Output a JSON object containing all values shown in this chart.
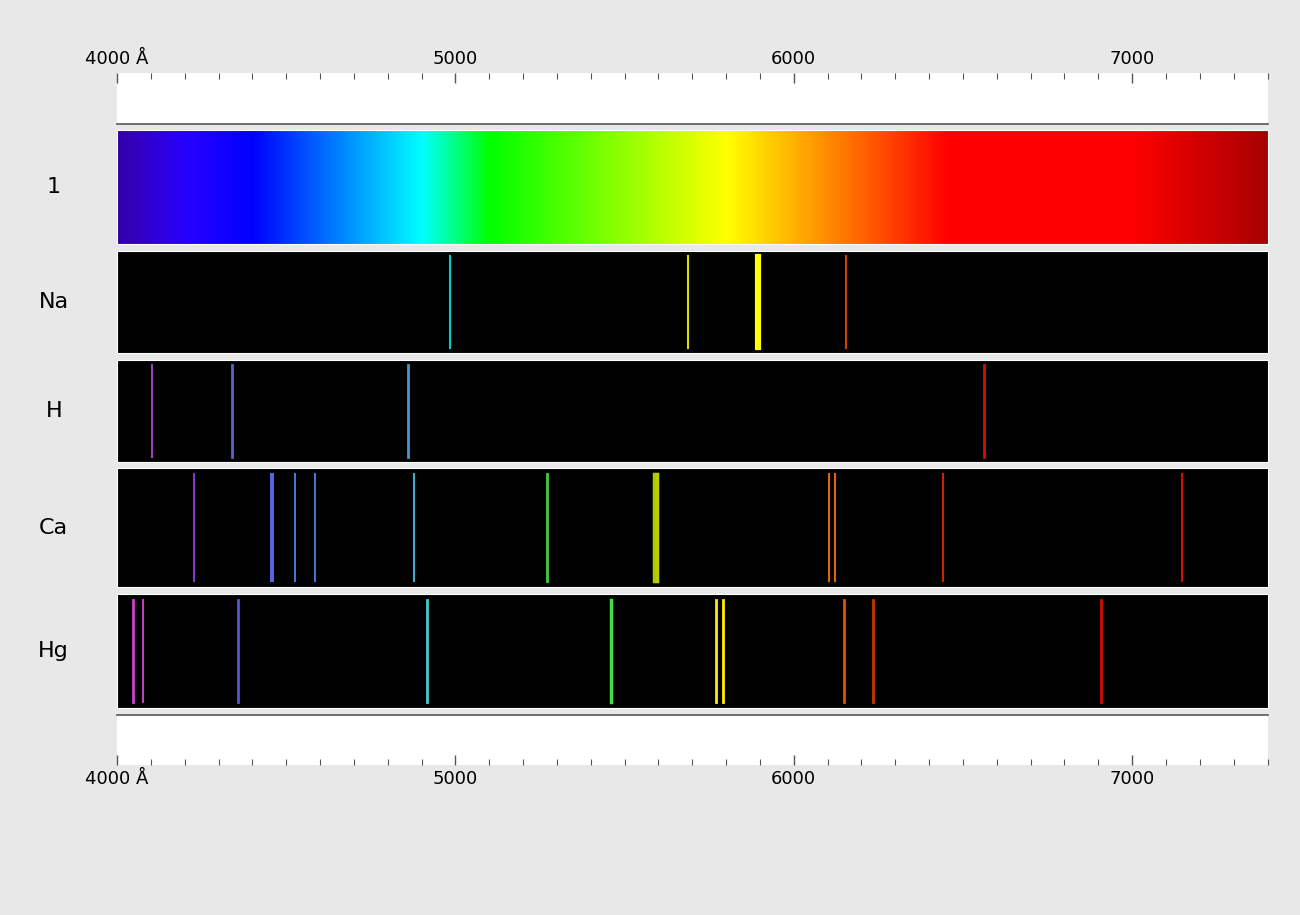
{
  "wavelength_min": 4000,
  "wavelength_max": 7400,
  "spectrum_rows": [
    "1",
    "Na",
    "H",
    "Ca",
    "Hg"
  ],
  "figure_bg": "#e8e8e8",
  "tick_labels": [
    "4000 Å",
    "5000",
    "6000",
    "7000"
  ],
  "major_ticks": [
    4000,
    5000,
    6000,
    7000
  ],
  "na_lines": [
    {
      "wl": 4983,
      "color": "#00cccc",
      "lw": 1.5
    },
    {
      "wl": 5688,
      "color": "#dddd00",
      "lw": 1.5
    },
    {
      "wl": 5890,
      "color": "#ffff00",
      "lw": 3.0
    },
    {
      "wl": 5896,
      "color": "#ffff00",
      "lw": 3.0
    },
    {
      "wl": 6154,
      "color": "#cc4400",
      "lw": 1.5
    }
  ],
  "h_lines": [
    {
      "wl": 4102,
      "color": "#9944bb",
      "lw": 1.5
    },
    {
      "wl": 4341,
      "color": "#5566cc",
      "lw": 2.0
    },
    {
      "wl": 4861,
      "color": "#4499cc",
      "lw": 2.0
    },
    {
      "wl": 6563,
      "color": "#cc1100",
      "lw": 2.0
    }
  ],
  "ca_lines": [
    {
      "wl": 4227,
      "color": "#8833cc",
      "lw": 1.5
    },
    {
      "wl": 4455,
      "color": "#5566dd",
      "lw": 1.5
    },
    {
      "wl": 4460,
      "color": "#5566dd",
      "lw": 1.5
    },
    {
      "wl": 4526,
      "color": "#4477cc",
      "lw": 1.5
    },
    {
      "wl": 4585,
      "color": "#4477cc",
      "lw": 1.5
    },
    {
      "wl": 4878,
      "color": "#44aacc",
      "lw": 1.5
    },
    {
      "wl": 5270,
      "color": "#44cc44",
      "lw": 2.0
    },
    {
      "wl": 5588,
      "color": "#aacc00",
      "lw": 2.5
    },
    {
      "wl": 5595,
      "color": "#bbcc00",
      "lw": 2.5
    },
    {
      "wl": 6103,
      "color": "#dd6600",
      "lw": 1.5
    },
    {
      "wl": 6122,
      "color": "#dd6600",
      "lw": 1.5
    },
    {
      "wl": 6440,
      "color": "#cc2200",
      "lw": 1.5
    },
    {
      "wl": 7148,
      "color": "#cc1100",
      "lw": 1.5
    }
  ],
  "hg_lines": [
    {
      "wl": 4047,
      "color": "#cc44cc",
      "lw": 2.0
    },
    {
      "wl": 4078,
      "color": "#bb44bb",
      "lw": 1.5
    },
    {
      "wl": 4358,
      "color": "#5555dd",
      "lw": 2.0
    },
    {
      "wl": 4916,
      "color": "#44cccc",
      "lw": 2.0
    },
    {
      "wl": 5461,
      "color": "#44dd44",
      "lw": 2.5
    },
    {
      "wl": 5770,
      "color": "#ffee00",
      "lw": 2.0
    },
    {
      "wl": 5791,
      "color": "#ffee00",
      "lw": 2.0
    },
    {
      "wl": 6149,
      "color": "#dd5500",
      "lw": 2.0
    },
    {
      "wl": 6234,
      "color": "#cc3300",
      "lw": 2.0
    },
    {
      "wl": 6907,
      "color": "#cc1100",
      "lw": 2.0
    }
  ]
}
